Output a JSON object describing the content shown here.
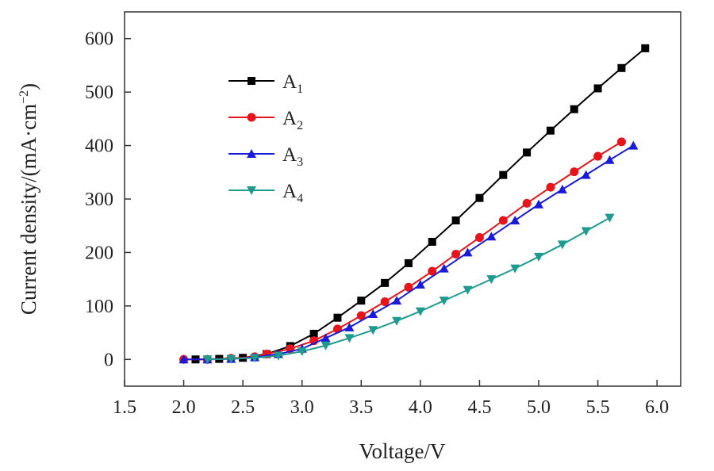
{
  "chart_data": {
    "type": "line",
    "xlabel": "Voltage/V",
    "ylabel": "Current density/(mA·cm",
    "ylabel_sup": "−2",
    "ylabel_close": ")",
    "xlim": [
      1.5,
      6.2
    ],
    "ylim": [
      -50,
      650
    ],
    "xticks": [
      1.5,
      2.0,
      2.5,
      3.0,
      3.5,
      4.0,
      4.5,
      5.0,
      5.5,
      6.0
    ],
    "xtick_labels": [
      "1.5",
      "2.0",
      "2.5",
      "3.0",
      "3.5",
      "4.0",
      "4.5",
      "5.0",
      "5.5",
      "6.0"
    ],
    "yticks": [
      0,
      100,
      200,
      300,
      400,
      500,
      600
    ],
    "ytick_labels": [
      "0",
      "100",
      "200",
      "300",
      "400",
      "500",
      "600"
    ],
    "legend_position": "top-left",
    "series": [
      {
        "name": "A",
        "sub": "1",
        "color": "#000000",
        "marker": "square",
        "x": [
          2.1,
          2.3,
          2.5,
          2.7,
          2.9,
          3.1,
          3.3,
          3.5,
          3.7,
          3.9,
          4.1,
          4.3,
          4.5,
          4.7,
          4.9,
          5.1,
          5.3,
          5.5,
          5.7,
          5.9
        ],
        "y": [
          0,
          1,
          3,
          10,
          25,
          48,
          78,
          110,
          143,
          180,
          220,
          260,
          302,
          345,
          387,
          428,
          468,
          507,
          545,
          582
        ]
      },
      {
        "name": "A",
        "sub": "2",
        "color": "#e8141b",
        "marker": "circle",
        "x": [
          2.0,
          2.2,
          2.4,
          2.6,
          2.7,
          2.9,
          3.1,
          3.3,
          3.5,
          3.7,
          3.9,
          4.1,
          4.3,
          4.5,
          4.7,
          4.9,
          5.1,
          5.3,
          5.5,
          5.7
        ],
        "y": [
          0,
          0,
          2,
          5,
          10,
          20,
          35,
          57,
          82,
          108,
          135,
          165,
          197,
          228,
          260,
          292,
          322,
          351,
          380,
          407
        ]
      },
      {
        "name": "A",
        "sub": "3",
        "color": "#1a1adb",
        "marker": "triangle-up",
        "x": [
          2.0,
          2.2,
          2.4,
          2.6,
          2.8,
          3.0,
          3.2,
          3.4,
          3.6,
          3.8,
          4.0,
          4.2,
          4.4,
          4.6,
          4.8,
          5.0,
          5.2,
          5.4,
          5.6,
          5.8
        ],
        "y": [
          0,
          0,
          1,
          4,
          10,
          20,
          40,
          60,
          85,
          110,
          140,
          170,
          200,
          230,
          260,
          290,
          318,
          345,
          373,
          400
        ]
      },
      {
        "name": "A",
        "sub": "4",
        "color": "#1f9a8e",
        "marker": "triangle-down",
        "x": [
          2.2,
          2.4,
          2.6,
          2.8,
          3.0,
          3.2,
          3.4,
          3.6,
          3.8,
          4.0,
          4.2,
          4.4,
          4.6,
          4.8,
          5.0,
          5.2,
          5.4,
          5.6
        ],
        "y": [
          0,
          1,
          3,
          7,
          15,
          26,
          40,
          55,
          72,
          90,
          110,
          130,
          150,
          170,
          192,
          215,
          240,
          265
        ]
      }
    ]
  }
}
